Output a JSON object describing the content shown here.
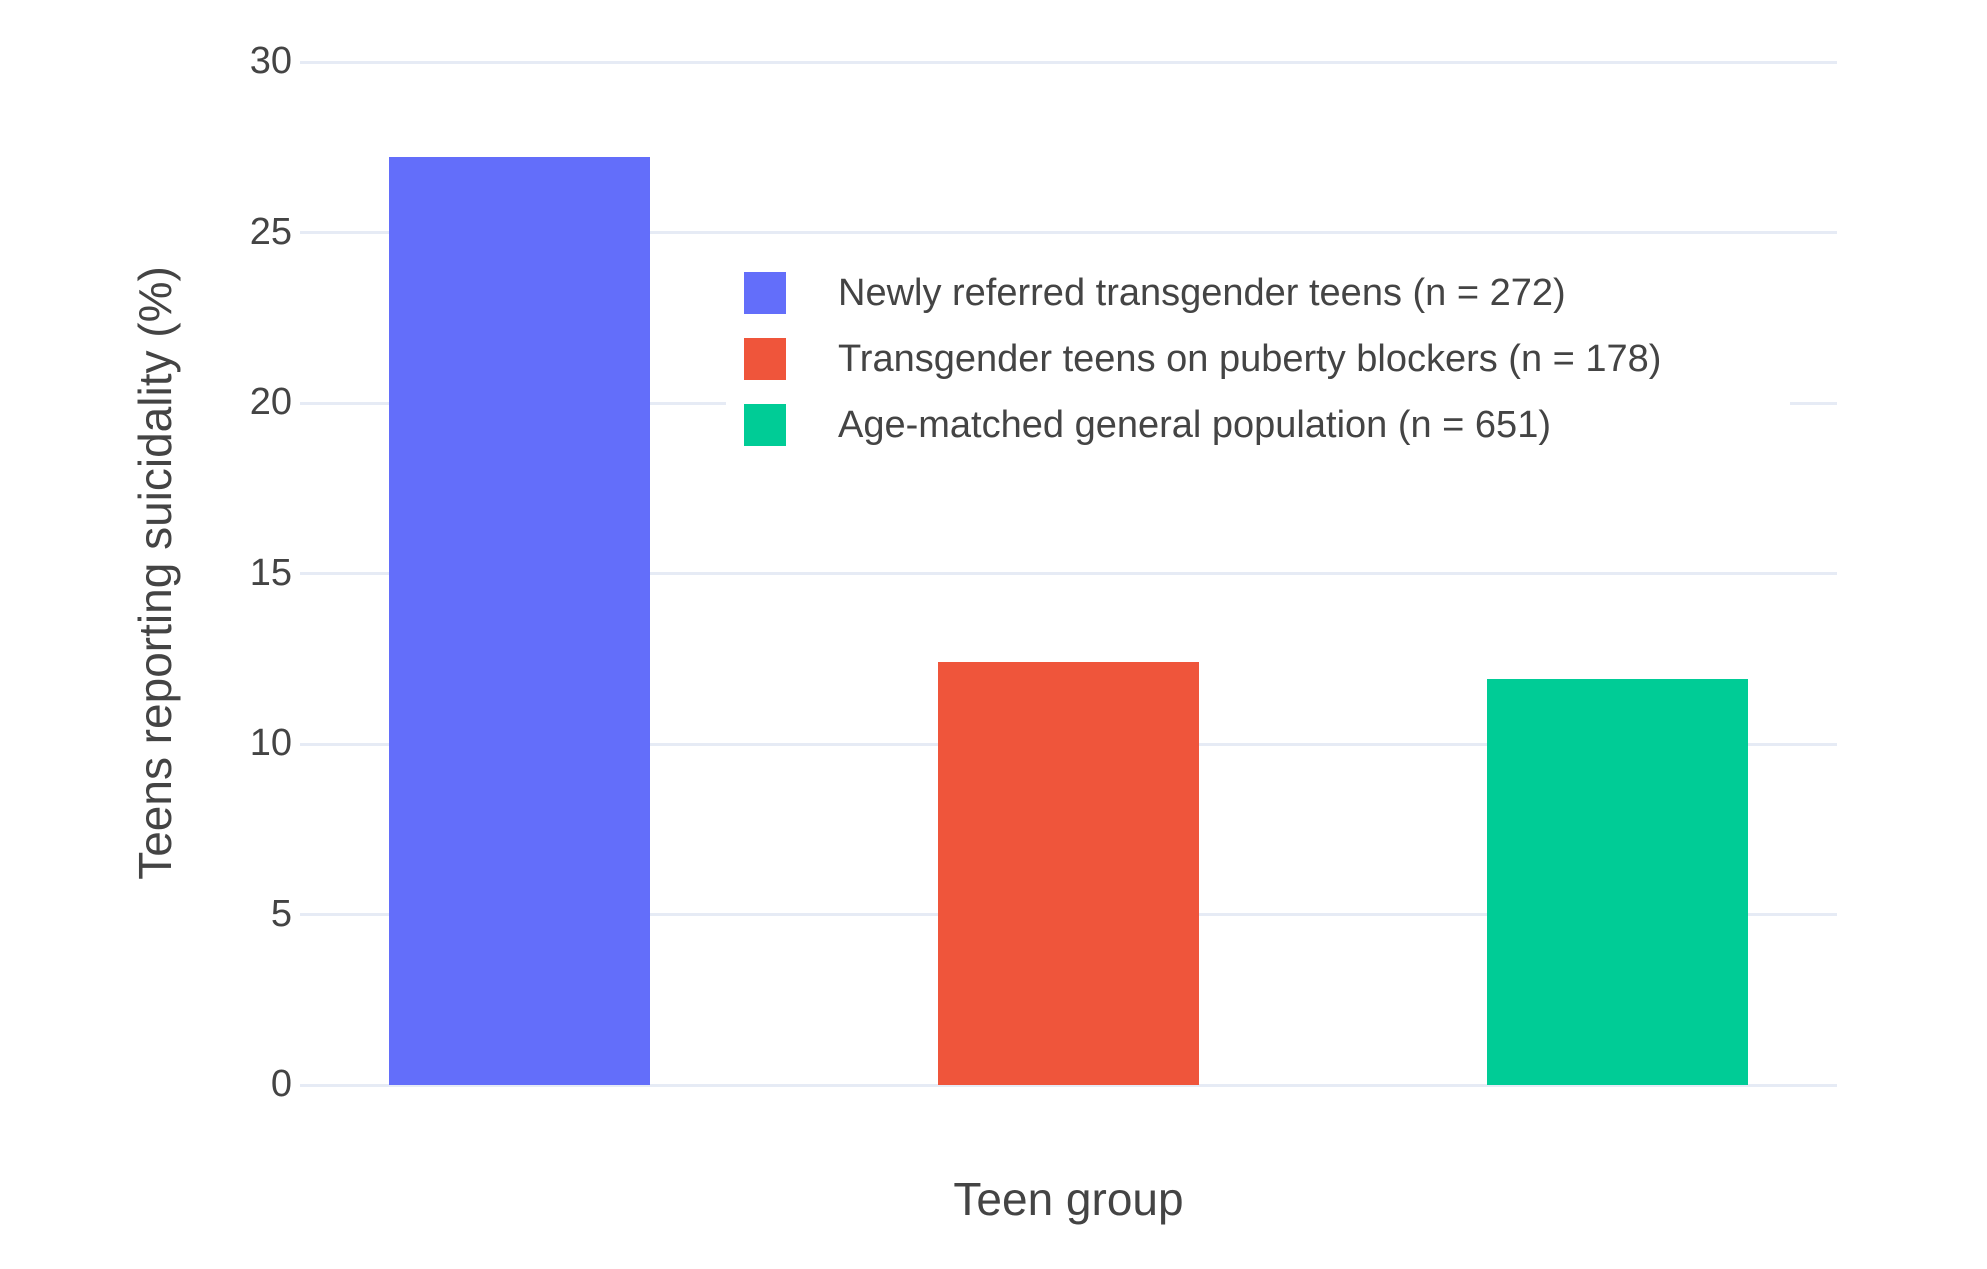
{
  "chart_data": {
    "type": "bar",
    "title": "",
    "xlabel": "Teen group",
    "ylabel": "Teens reporting suicidality (%)",
    "categories": [
      "Newly referred transgender teens (n = 272)",
      "Transgender teens on puberty blockers (n = 178)",
      "Age-matched general population (n = 651)"
    ],
    "values": [
      27.2,
      12.4,
      11.9
    ],
    "bar_colors": [
      "#636EFA",
      "#EF553B",
      "#00CC96"
    ],
    "ylim": [
      0,
      30
    ],
    "yticks": [
      0,
      5,
      10,
      15,
      20,
      25,
      30
    ],
    "x_tick_labels": [],
    "grid": true,
    "gridline_color": "#E6EBF5",
    "text_color": "#444444",
    "background_color": "#ffffff",
    "legend": {
      "position": "inside-top-right",
      "entries": [
        "Newly referred transgender teens (n = 272)",
        "Transgender teens on puberty blockers (n = 178)",
        "Age-matched general population (n = 651)"
      ]
    }
  }
}
